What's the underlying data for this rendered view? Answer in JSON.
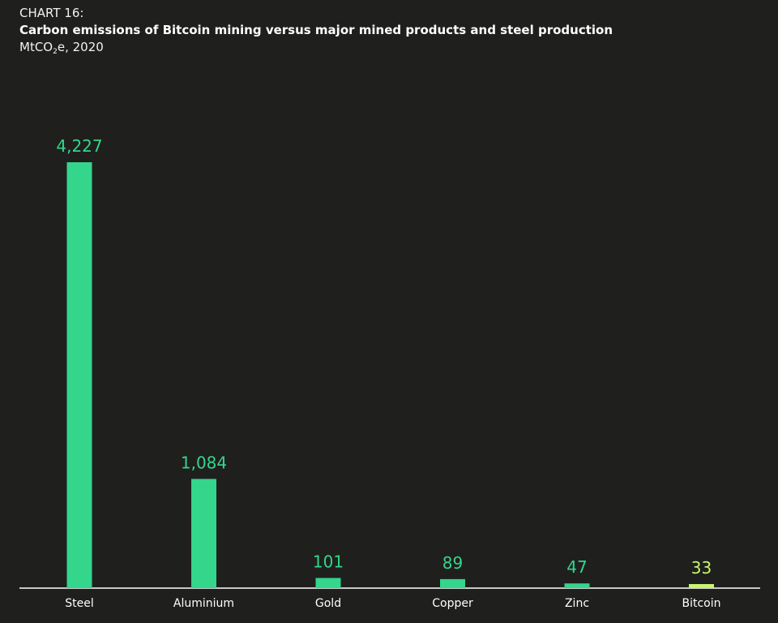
{
  "header": {
    "chart_number": "CHART 16:",
    "title": "Carbon emissions of Bitcoin mining versus major mined products and steel production",
    "unit_prefix": "MtCO",
    "unit_subscript": "2",
    "unit_suffix": "e, 2020"
  },
  "chart_data": {
    "type": "bar",
    "title": "Carbon emissions of Bitcoin mining versus major mined products and steel production",
    "subtitle": "MtCO2e, 2020",
    "xlabel": "",
    "ylabel": "",
    "ylim": [
      0,
      4227
    ],
    "grid": false,
    "categories": [
      "Steel",
      "Aluminium",
      "Gold",
      "Copper",
      "Zinc",
      "Bitcoin"
    ],
    "values": [
      4227,
      1084,
      101,
      89,
      47,
      33
    ],
    "value_labels": [
      "4,227",
      "1,084",
      "101",
      "89",
      "47",
      "33"
    ],
    "colors": [
      "#33d68a",
      "#33d68a",
      "#33d68a",
      "#33d68a",
      "#33d68a",
      "#c9f56e"
    ],
    "label_colors": [
      "#33d68a",
      "#33d68a",
      "#33d68a",
      "#33d68a",
      "#33d68a",
      "#c9f56e"
    ]
  }
}
